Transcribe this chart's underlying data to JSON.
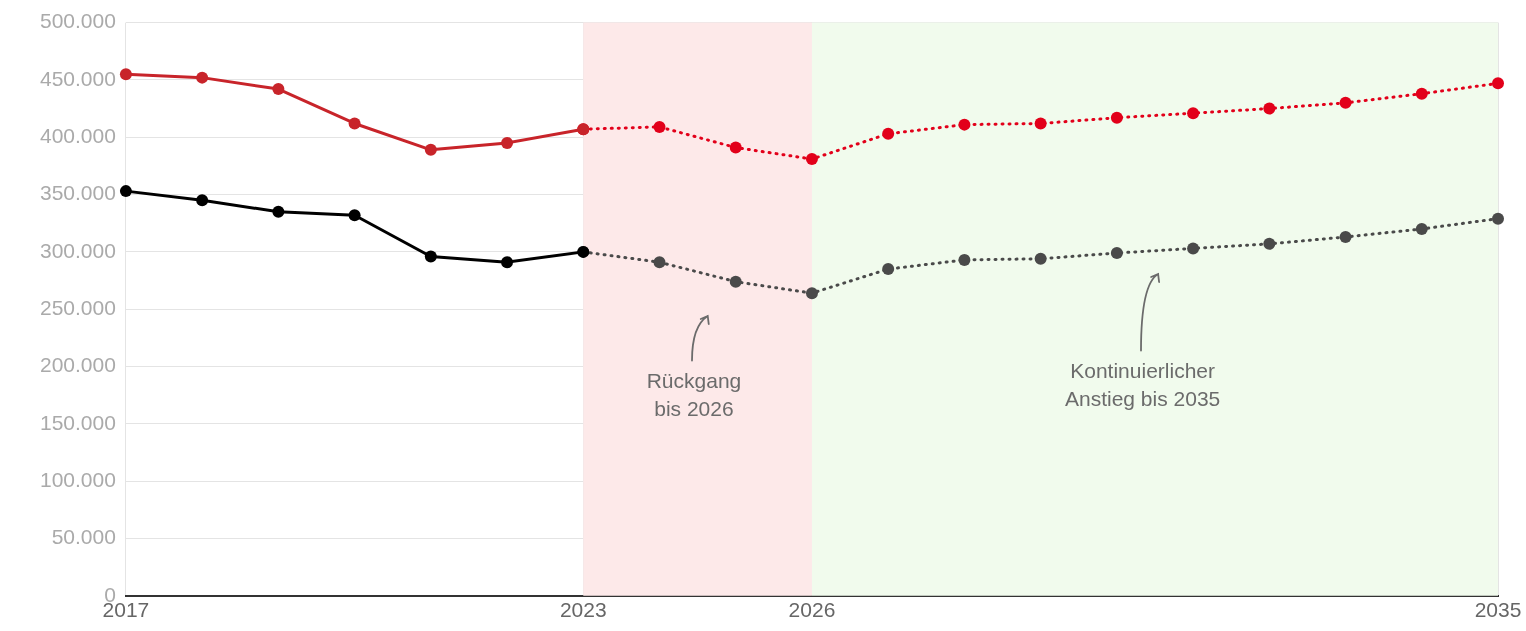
{
  "chart_data": {
    "type": "line",
    "xlim": [
      2017,
      2035
    ],
    "xticks": [
      2017,
      2023,
      2026,
      2035
    ],
    "ylim": [
      0,
      500000
    ],
    "yticks": [
      {
        "value": 0,
        "label": "0"
      },
      {
        "value": 50000,
        "label": "50.000"
      },
      {
        "value": 100000,
        "label": "100.000"
      },
      {
        "value": 150000,
        "label": "150.000"
      },
      {
        "value": 200000,
        "label": "200.000"
      },
      {
        "value": 250000,
        "label": "250.000"
      },
      {
        "value": 300000,
        "label": "300.000"
      },
      {
        "value": 350000,
        "label": "350.000"
      },
      {
        "value": 400000,
        "label": "400.000"
      },
      {
        "value": 450000,
        "label": "450.000"
      },
      {
        "value": 500000,
        "label": "500.000"
      }
    ],
    "grid": true,
    "legend": false,
    "marker": "circle",
    "bands": [
      {
        "axis": "x",
        "from": 2023,
        "to": 2026,
        "label": null,
        "color": "#fde9e9"
      },
      {
        "axis": "x",
        "from": 2026,
        "to": 2035,
        "label": null,
        "color": "#f1fbed"
      }
    ],
    "series": [
      {
        "color": "#c8242a",
        "line_style": "solid",
        "x": [
          2017,
          2018,
          2019,
          2020,
          2021,
          2022,
          2023
        ],
        "values": [
          455000,
          452000,
          442000,
          412000,
          389000,
          395000,
          407000
        ]
      },
      {
        "color": "#e2001a",
        "line_style": "dotted",
        "x": [
          2023,
          2024,
          2025,
          2026,
          2027,
          2028,
          2029,
          2030,
          2031,
          2032,
          2033,
          2034,
          2035
        ],
        "values": [
          407000,
          409000,
          391000,
          381000,
          403000,
          411000,
          412000,
          417000,
          421000,
          425000,
          430000,
          438000,
          447000
        ]
      },
      {
        "color": "#000000",
        "line_style": "solid",
        "x": [
          2017,
          2018,
          2019,
          2020,
          2021,
          2022,
          2023
        ],
        "values": [
          353000,
          345000,
          335000,
          332000,
          296000,
          291000,
          300000
        ]
      },
      {
        "color": "#4a4a4a",
        "line_style": "dotted",
        "x": [
          2023,
          2024,
          2025,
          2026,
          2027,
          2028,
          2029,
          2030,
          2031,
          2032,
          2033,
          2034,
          2035
        ],
        "values": [
          300000,
          291000,
          274000,
          264000,
          285000,
          293000,
          294000,
          299000,
          303000,
          307000,
          313000,
          320000,
          329000
        ]
      }
    ],
    "annotations": [
      "Rückgang\nbis 2026",
      "Kontinuierlicher\nAnstieg bis 2035"
    ]
  }
}
